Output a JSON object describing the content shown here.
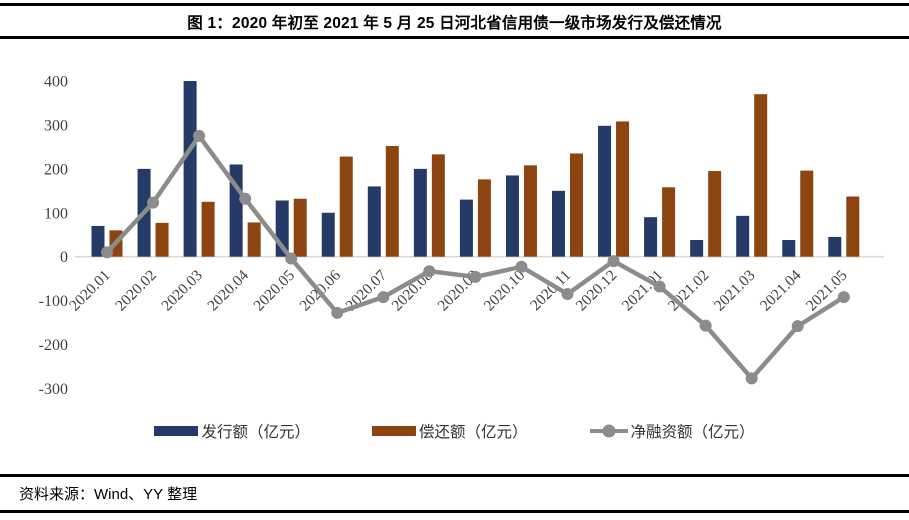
{
  "figure": {
    "title": "图 1：2020 年初至 2021 年 5 月 25 日河北省信用债一级市场发行及偿还情况",
    "source_note": "资料来源：Wind、YY 整理"
  },
  "colors": {
    "issuance": "#253A67",
    "repayment": "#8C4511",
    "net": "#8C8C8C",
    "axis_line": "#D9D9D9",
    "axis_text": "#3F3F3F",
    "rule": "#000000",
    "background": "#FFFFFF"
  },
  "legend": [
    {
      "label": "发行额（亿元）",
      "series": "issuance",
      "marker": "bar"
    },
    {
      "label": "偿还额（亿元）",
      "series": "repayment",
      "marker": "bar"
    },
    {
      "label": "净融资额（亿元）",
      "series": "net",
      "marker": "line-dot"
    }
  ],
  "chart_data": {
    "type": "bar+line",
    "title": "图 1：2020 年初至 2021 年 5 月 25 日河北省信用债一级市场发行及偿还情况",
    "categories": [
      "2020.01",
      "2020.02",
      "2020.03",
      "2020.04",
      "2020.05",
      "2020.06",
      "2020.07",
      "2020.08",
      "2020.09",
      "2020.10",
      "2020.11",
      "2020.12",
      "2021.01",
      "2021.02",
      "2021.03",
      "2021.04",
      "2021.05"
    ],
    "series": [
      {
        "name": "发行额（亿元）",
        "key": "issuance",
        "type": "bar",
        "color": "#253A67",
        "values": [
          70,
          200,
          400,
          210,
          128,
          100,
          160,
          200,
          130,
          185,
          150,
          298,
          90,
          38,
          93,
          38,
          45
        ]
      },
      {
        "name": "偿还额（亿元）",
        "key": "repayment",
        "type": "bar",
        "color": "#8C4511",
        "values": [
          60,
          77,
          125,
          78,
          132,
          228,
          252,
          233,
          176,
          208,
          235,
          308,
          158,
          195,
          370,
          196,
          137
        ]
      },
      {
        "name": "净融资额（亿元）",
        "key": "net",
        "type": "line",
        "color": "#8C8C8C",
        "values": [
          10,
          123,
          275,
          132,
          -4,
          -128,
          -92,
          -33,
          -46,
          -23,
          -85,
          -10,
          -68,
          -157,
          -277,
          -158,
          -92
        ]
      }
    ],
    "xlabel": "",
    "ylabel": "",
    "unit": "亿元",
    "ylim": [
      -300,
      400
    ],
    "yticks": [
      400,
      300,
      200,
      100,
      0,
      -100,
      -200,
      -300
    ],
    "grid": false,
    "legend_position": "bottom"
  }
}
